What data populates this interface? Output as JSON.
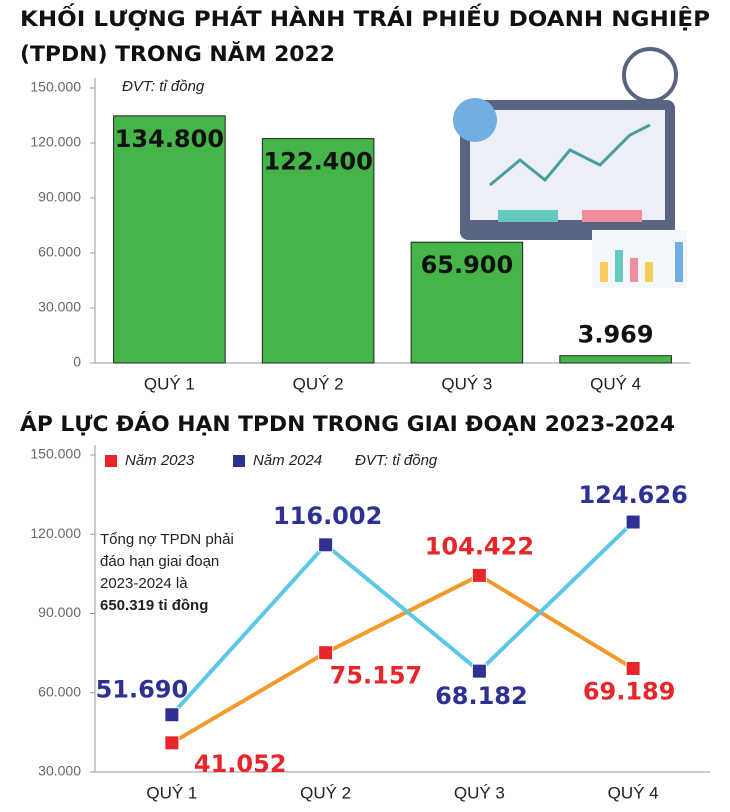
{
  "chart_data": [
    {
      "type": "bar",
      "title": [
        "KHỐI LƯỢNG PHÁT HÀNH TRÁI PHIẾU DOANH NGHIỆP",
        "(TPDN) TRONG NĂM 2022"
      ],
      "unit": "ĐVT: tỉ đồng",
      "categories": [
        "QUÝ 1",
        "QUÝ 2",
        "QUÝ 3",
        "QUÝ 4"
      ],
      "values": [
        134800,
        122400,
        65900,
        3969
      ],
      "value_labels": [
        "134.800",
        "122.400",
        "65.900",
        "3.969"
      ],
      "color": "#46b549",
      "ylim": [
        0,
        150000
      ],
      "yticks": [
        {
          "value": 0,
          "label": "0"
        },
        {
          "value": 30000,
          "label": "30.000"
        },
        {
          "value": 60000,
          "label": "60.000"
        },
        {
          "value": 90000,
          "label": "90.000"
        },
        {
          "value": 120000,
          "label": "120.000"
        },
        {
          "value": 150000,
          "label": "150.000"
        }
      ]
    },
    {
      "type": "line",
      "title": [
        "ÁP LỰC ĐÁO HẠN TPDN TRONG GIAI ĐOẠN 2023-2024"
      ],
      "unit": "ĐVT: tỉ đồng",
      "categories": [
        "QUÝ 1",
        "QUÝ 2",
        "QUÝ 3",
        "QUÝ 4"
      ],
      "series": [
        {
          "name": "Năm 2023",
          "color": "#e8262a",
          "line_color": "#f39a2b",
          "values": [
            41052,
            75157,
            104422,
            69189
          ],
          "value_labels": [
            "41.052",
            "75.157",
            "104.422",
            "69.189"
          ]
        },
        {
          "name": "Năm 2024",
          "color": "#2e3192",
          "line_color": "#5bc8e8",
          "values": [
            51690,
            116002,
            68182,
            124626
          ],
          "value_labels": [
            "51.690",
            "116.002",
            "68.182",
            "124.626"
          ]
        }
      ],
      "annotation": [
        "Tổng nợ TPDN phải",
        "đáo hạn giai đoạn",
        "2023-2024 là",
        "650.319 tỉ đồng"
      ],
      "ylim": [
        30000,
        150000
      ],
      "yticks": [
        {
          "value": 30000,
          "label": "30.000"
        },
        {
          "value": 60000,
          "label": "60.000"
        },
        {
          "value": 90000,
          "label": "90.000"
        },
        {
          "value": 120000,
          "label": "120.000"
        },
        {
          "value": 150000,
          "label": "150.000"
        }
      ]
    }
  ]
}
